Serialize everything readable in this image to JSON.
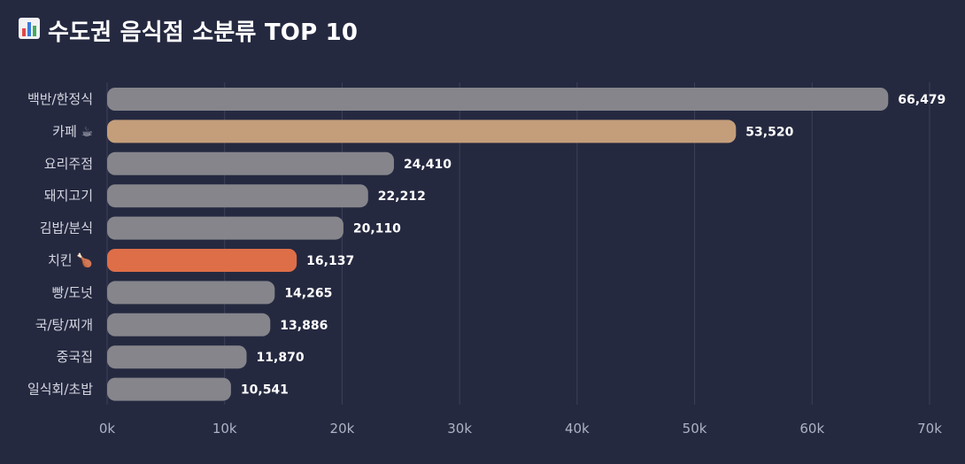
{
  "chart_data": {
    "type": "bar",
    "orientation": "horizontal",
    "title": "수도권 음식점 소분류 TOP 10",
    "title_icon": "bar-chart-icon",
    "categories": [
      "백반/한정식",
      "카페 ☕",
      "요리주점",
      "돼지고기",
      "김밥/분식",
      "치킨 🍗",
      "빵/도넛",
      "국/탕/찌개",
      "중국집",
      "일식회/초밥"
    ],
    "values": [
      66479,
      53520,
      24410,
      22212,
      20110,
      16137,
      14265,
      13886,
      11870,
      10541
    ],
    "value_labels": [
      "66,479",
      "53,520",
      "24,410",
      "22,212",
      "20,110",
      "16,137",
      "14,265",
      "13,886",
      "11,870",
      "10,541"
    ],
    "highlights": [
      "",
      "cafe",
      "",
      "",
      "",
      "chicken",
      "",
      "",
      "",
      ""
    ],
    "xlim": [
      0,
      70000
    ],
    "xticks": [
      0,
      10000,
      20000,
      30000,
      40000,
      50000,
      60000,
      70000
    ],
    "xtick_labels": [
      "0k",
      "10k",
      "20k",
      "30k",
      "40k",
      "50k",
      "60k",
      "70k"
    ],
    "xlabel": "",
    "ylabel": "",
    "grid": true,
    "colors": {
      "default": "#85858b",
      "cafe": "#c49e7a",
      "chicken": "#de6e48",
      "background": "#252940",
      "grid": "#3c4058"
    }
  }
}
